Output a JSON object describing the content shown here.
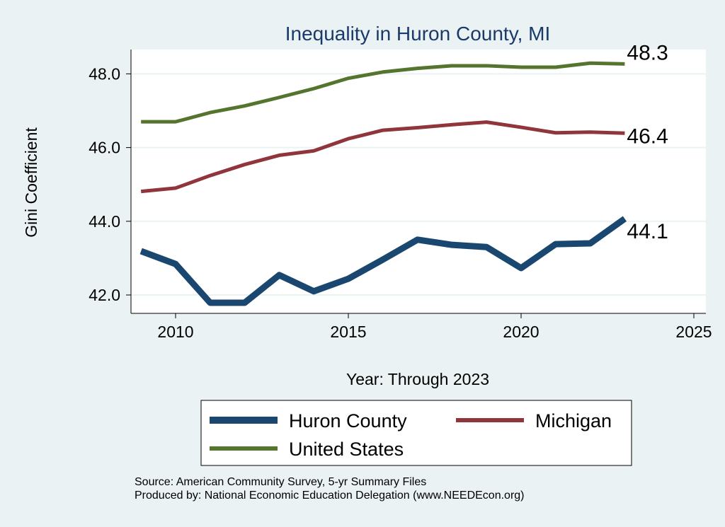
{
  "chart_data": {
    "type": "line",
    "title": "Inequality in Huron County, MI",
    "xlabel": "Year: Through 2023",
    "ylabel": "Gini Coefficient",
    "xlim": [
      2008.8,
      2025.4
    ],
    "ylim": [
      41.5,
      48.6
    ],
    "xticks": [
      2010,
      2015,
      2020,
      2025
    ],
    "yticks": [
      42,
      44,
      46,
      48
    ],
    "ytick_labels": [
      "42.0",
      "44.0",
      "46.0",
      "48.0"
    ],
    "grid": true,
    "legend_position": "bottom",
    "x": [
      2009,
      2010,
      2011,
      2012,
      2013,
      2014,
      2015,
      2016,
      2017,
      2018,
      2019,
      2020,
      2021,
      2022,
      2023
    ],
    "series": [
      {
        "name": "Huron County",
        "color": "#1a476f",
        "end_label": "44.1",
        "values": [
          43.19,
          42.84,
          41.79,
          41.79,
          42.54,
          42.1,
          42.44,
          42.96,
          43.5,
          43.36,
          43.3,
          42.73,
          43.38,
          43.4,
          44.07
        ]
      },
      {
        "name": "Michigan",
        "color": "#90353b",
        "end_label": "46.4",
        "values": [
          44.81,
          44.9,
          45.24,
          45.54,
          45.79,
          45.91,
          46.24,
          46.47,
          46.54,
          46.62,
          46.69,
          46.55,
          46.4,
          46.42,
          46.39
        ]
      },
      {
        "name": "United States",
        "color": "#55752f",
        "end_label": "48.3",
        "values": [
          46.7,
          46.7,
          46.95,
          47.13,
          47.36,
          47.6,
          47.88,
          48.05,
          48.15,
          48.22,
          48.22,
          48.18,
          48.18,
          48.29,
          48.27
        ]
      }
    ]
  },
  "notes": {
    "source": "Source: American Community Survey, 5-yr Summary Files",
    "produced": "Produced by: National Economic Education Delegation (www.NEEDEcon.org)"
  }
}
